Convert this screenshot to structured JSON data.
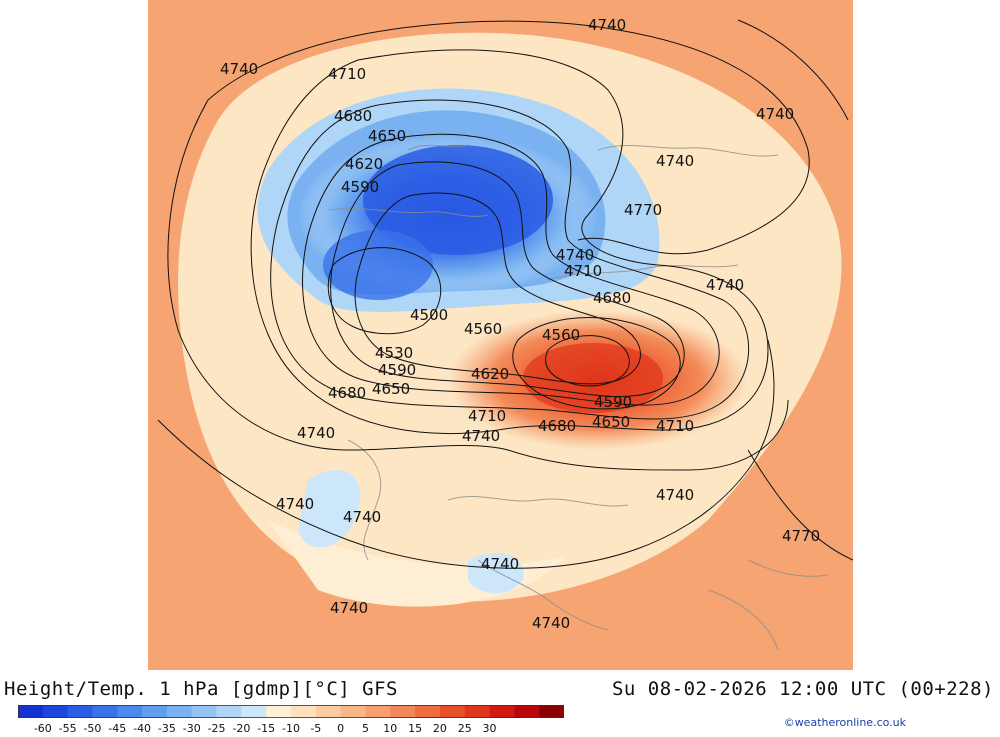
{
  "map": {
    "title": "Height/Temp. 1 hPa [gdmp][°C] GFS",
    "valid_time": "Su 08-02-2026 12:00 UTC (00+228)",
    "credit": "©weatheronline.co.uk",
    "contour_labels": [
      "4740",
      "4740",
      "4710",
      "4740",
      "4680",
      "4650",
      "4740",
      "4620",
      "4590",
      "4770",
      "4740",
      "4710",
      "4740",
      "4680",
      "4500",
      "4560",
      "4560",
      "4530",
      "4590",
      "4620",
      "4650",
      "4680",
      "4590",
      "4650",
      "4710",
      "4710",
      "4740",
      "4740",
      "4680",
      "4740",
      "4740",
      "4740",
      "4770",
      "4740",
      "4740",
      "4740"
    ],
    "legend": {
      "colors": [
        "#1432d2",
        "#1e46dc",
        "#2a5ce4",
        "#3a72ea",
        "#4c88ee",
        "#629eef",
        "#7ab2f1",
        "#94c4f4",
        "#b0d6f7",
        "#cce6fa",
        "#fdf0d6",
        "#fde0bc",
        "#fbcca0",
        "#f8b687",
        "#f6a070",
        "#f2875a",
        "#ed6c40",
        "#e8502c",
        "#e0341c",
        "#d01a10",
        "#b80808",
        "#8a0000"
      ],
      "ticks": [
        "-60",
        "-55",
        "-50",
        "-45",
        "-40",
        "-35",
        "-30",
        "-25",
        "-20",
        "-15",
        "-10",
        "-5",
        "0",
        "5",
        "10",
        "15",
        "20",
        "25",
        "30"
      ]
    }
  }
}
